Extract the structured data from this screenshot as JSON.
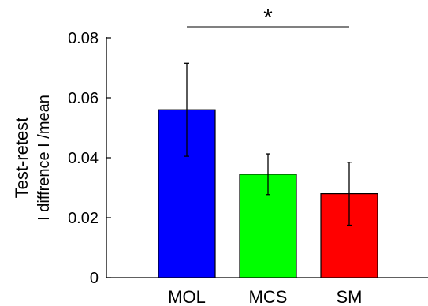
{
  "chart_data": {
    "type": "bar",
    "categories": [
      "MOL",
      "MCS",
      "SM"
    ],
    "values": [
      0.056,
      0.0345,
      0.028
    ],
    "errors": [
      0.0155,
      0.0068,
      0.0105
    ],
    "colors": [
      "#0000ff",
      "#00ff00",
      "#ff0000"
    ],
    "ylabel": "Test-retest",
    "ylabel_line2": "I diffrence I /mean",
    "ylim": [
      0,
      0.08
    ],
    "yticks": [
      "0",
      "0.02",
      "0.04",
      "0.06",
      "0.08"
    ],
    "annotation": "*",
    "annotation_span": [
      "MOL",
      "SM"
    ],
    "grid": false
  }
}
